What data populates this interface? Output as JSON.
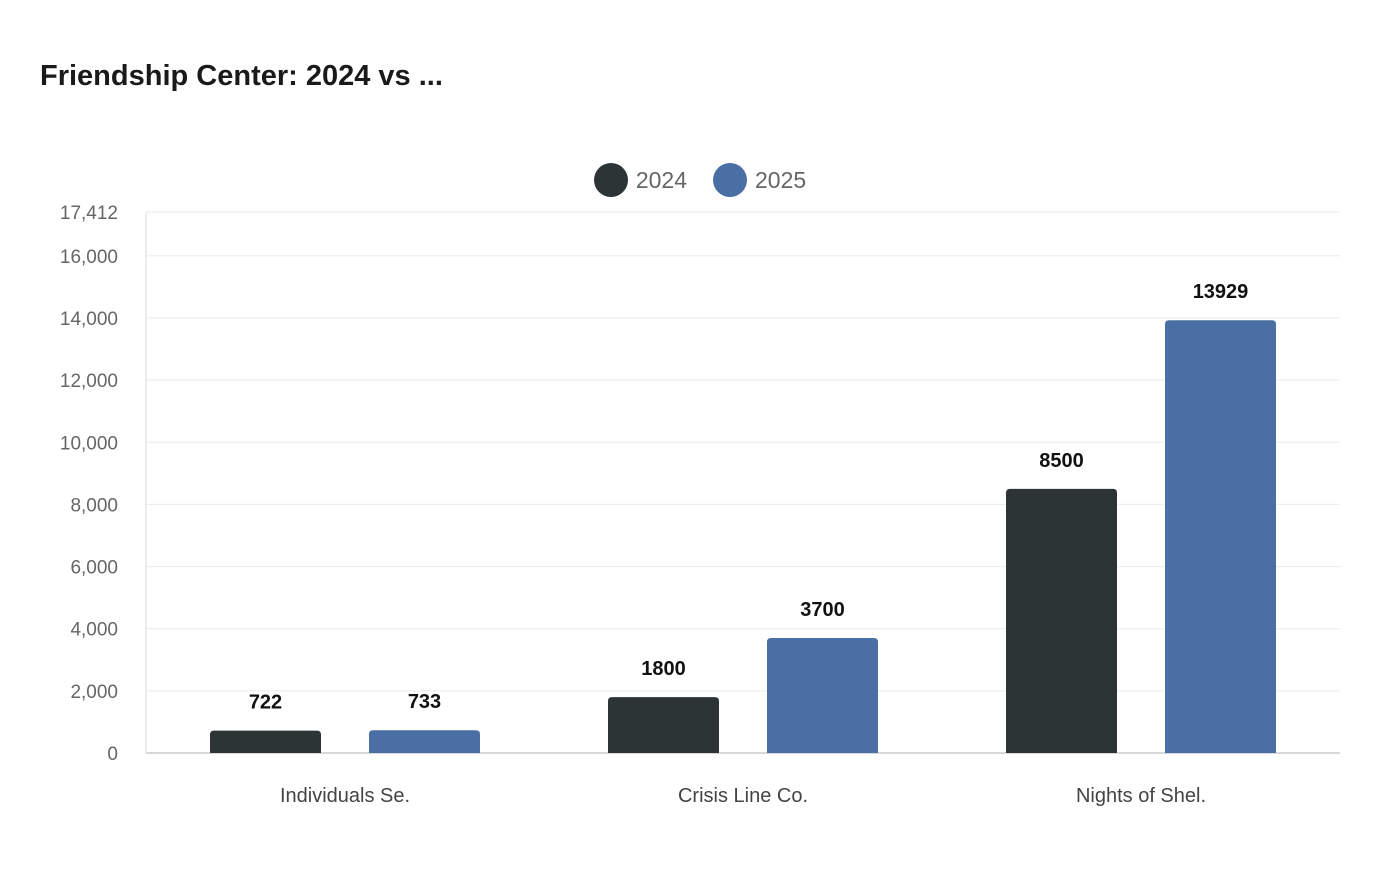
{
  "chart_data": {
    "type": "bar",
    "title": "Friendship Center: 2024 vs ...",
    "categories": [
      "Individuals Se.",
      "Crisis Line Co.",
      "Nights of Shel."
    ],
    "series": [
      {
        "name": "2024",
        "color": "#2d3436",
        "values": [
          722,
          1800,
          8500
        ]
      },
      {
        "name": "2025",
        "color": "#4a6fa5",
        "values": [
          733,
          3700,
          13929
        ]
      }
    ],
    "ylim": [
      0,
      17412
    ],
    "yticks": [
      0,
      2000,
      4000,
      6000,
      8000,
      10000,
      12000,
      14000,
      16000,
      17412
    ],
    "ytick_labels": [
      "0",
      "2,000",
      "4,000",
      "6,000",
      "8,000",
      "10,000",
      "12,000",
      "14,000",
      "16,000",
      "17,412"
    ],
    "grid": true,
    "legend": "top-center",
    "data_labels": true
  }
}
